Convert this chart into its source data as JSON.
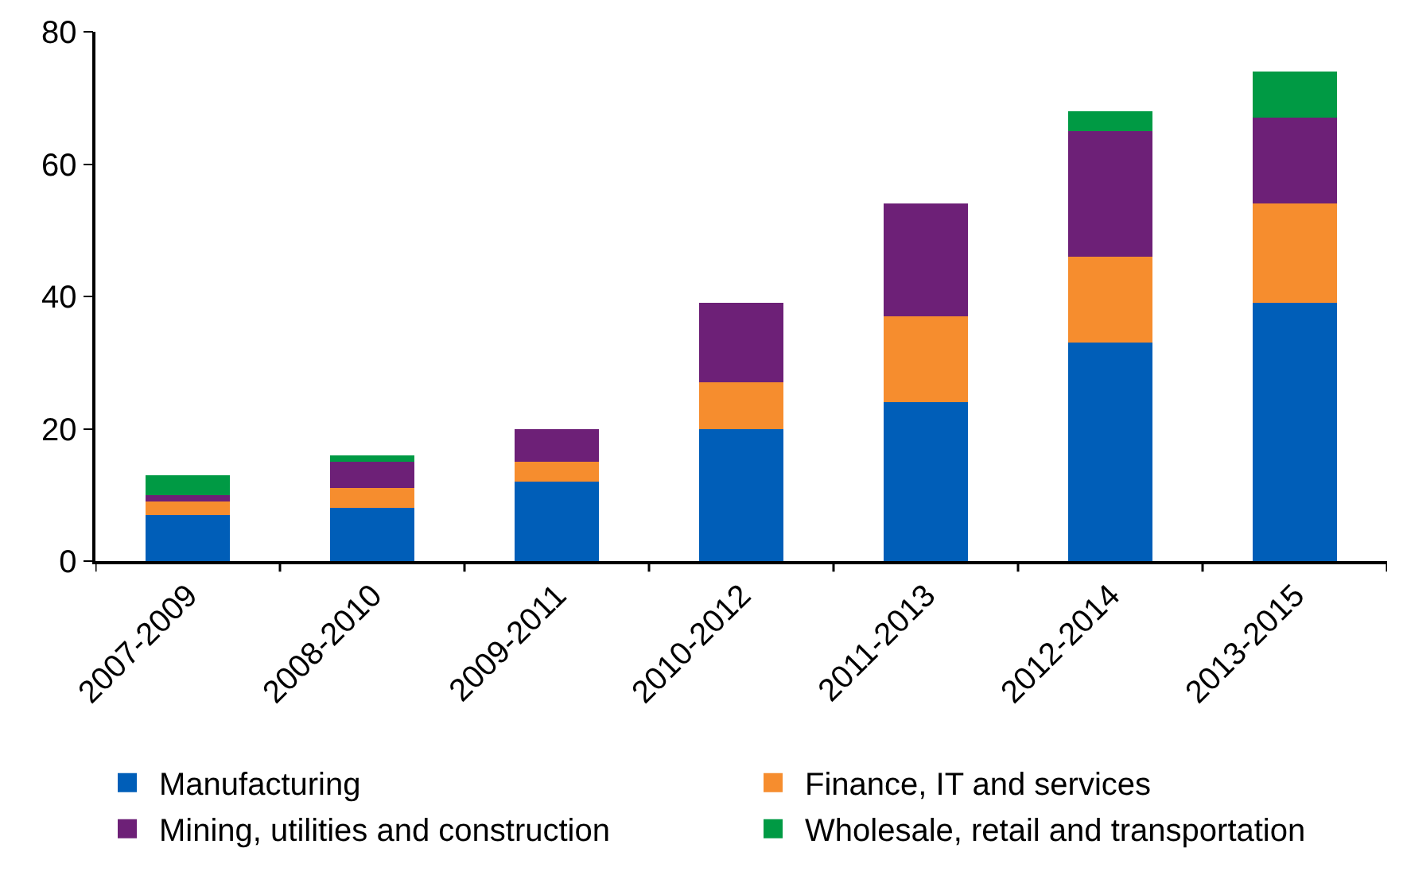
{
  "chart_data": {
    "type": "bar",
    "stacked": true,
    "categories": [
      "2007-2009",
      "2008-2010",
      "2009-2011",
      "2010-2012",
      "2011-2013",
      "2012-2014",
      "2013-2015"
    ],
    "series": [
      {
        "name": "Manufacturing",
        "color": "#005eb8",
        "values": [
          7,
          8,
          12,
          20,
          24,
          33,
          39
        ]
      },
      {
        "name": "Finance, IT and services",
        "color": "#f68d2e",
        "values": [
          2,
          3,
          3,
          7,
          13,
          13,
          15
        ]
      },
      {
        "name": "Mining, utilities and construction",
        "color": "#6d2077",
        "values": [
          1,
          4,
          5,
          12,
          17,
          19,
          13
        ]
      },
      {
        "name": "Wholesale, retail and transportation",
        "color": "#009a44",
        "values": [
          3,
          1,
          0,
          0,
          0,
          3,
          7
        ]
      }
    ],
    "ylim": [
      0,
      80
    ],
    "yticks": [
      0,
      20,
      40,
      60,
      80
    ],
    "grid": false,
    "legend": "bottom"
  }
}
